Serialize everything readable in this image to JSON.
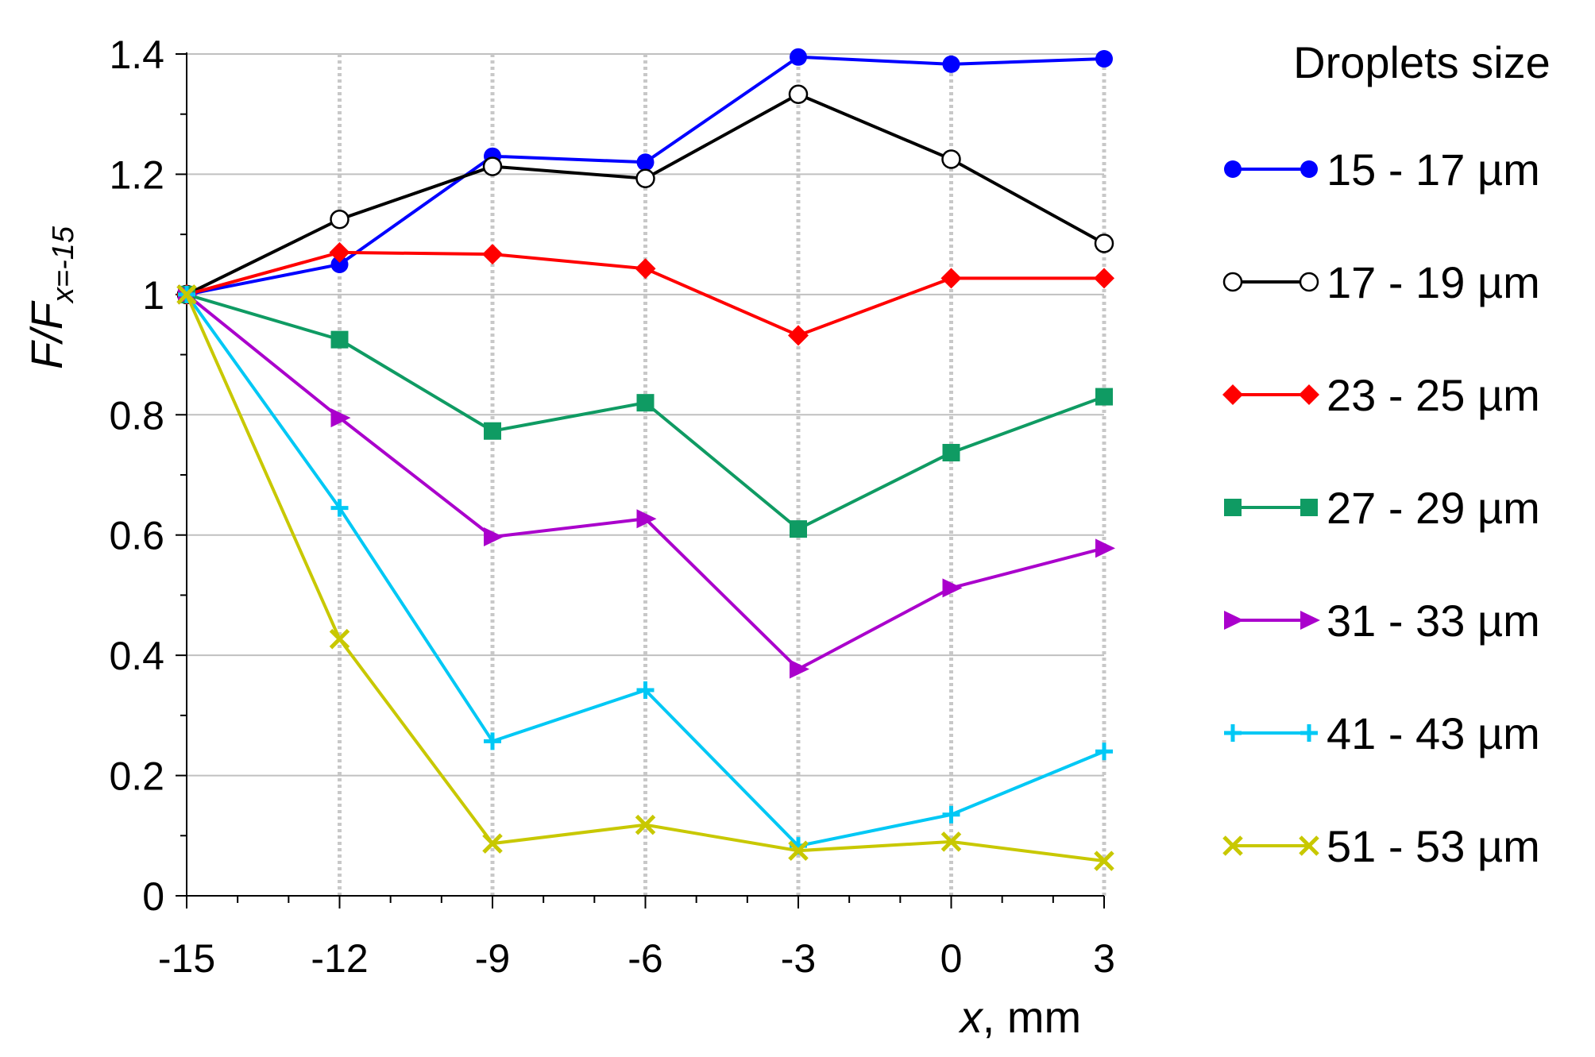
{
  "chart_data": {
    "type": "line",
    "title": "",
    "x": [
      -15,
      -12,
      -9,
      -6,
      -3,
      0,
      3
    ],
    "x_tick_labels": [
      "-15",
      "-12",
      "-9",
      "-6",
      "-3",
      "0",
      "3"
    ],
    "y_tick_labels": [
      "0",
      "0.2",
      "0.4",
      "0.6",
      "0.8",
      "1",
      "1.2",
      "1.4"
    ],
    "y_ticks": [
      0,
      0.2,
      0.4,
      0.6,
      0.8,
      1.0,
      1.2,
      1.4
    ],
    "xlabel_italic": "x",
    "xlabel_rest": ", mm",
    "ylabel_main": "F/F",
    "ylabel_sub": "x=-15",
    "xlim": [
      -15,
      3
    ],
    "ylim": [
      0,
      1.4
    ],
    "grid": true,
    "legend_title": "Droplets size",
    "legend_position": "right",
    "series": [
      {
        "name": "15 - 17 µm",
        "color": "#0000ff",
        "marker": "circle-filled",
        "values": [
          1.0,
          1.05,
          1.23,
          1.22,
          1.395,
          1.383,
          1.392
        ]
      },
      {
        "name": "17 - 19 µm",
        "color": "#000000",
        "marker": "circle-open",
        "values": [
          1.0,
          1.125,
          1.213,
          1.193,
          1.333,
          1.225,
          1.085
        ]
      },
      {
        "name": "23 - 25 µm",
        "color": "#ff0000",
        "marker": "diamond",
        "values": [
          1.0,
          1.07,
          1.067,
          1.043,
          0.932,
          1.027,
          1.027
        ]
      },
      {
        "name": "27 - 29 µm",
        "color": "#0f9b63",
        "marker": "square",
        "values": [
          1.0,
          0.925,
          0.773,
          0.82,
          0.61,
          0.737,
          0.83
        ]
      },
      {
        "name": "31 - 33 µm",
        "color": "#aa00cc",
        "marker": "triangle-right",
        "values": [
          1.0,
          0.795,
          0.597,
          0.627,
          0.377,
          0.512,
          0.578
        ]
      },
      {
        "name": "41 - 43 µm",
        "color": "#00c8f5",
        "marker": "plus",
        "values": [
          1.0,
          0.645,
          0.257,
          0.342,
          0.083,
          0.135,
          0.24
        ]
      },
      {
        "name": "51 - 53 µm",
        "color": "#c8c800",
        "marker": "x",
        "values": [
          1.0,
          0.427,
          0.087,
          0.118,
          0.075,
          0.09,
          0.058
        ]
      }
    ]
  }
}
